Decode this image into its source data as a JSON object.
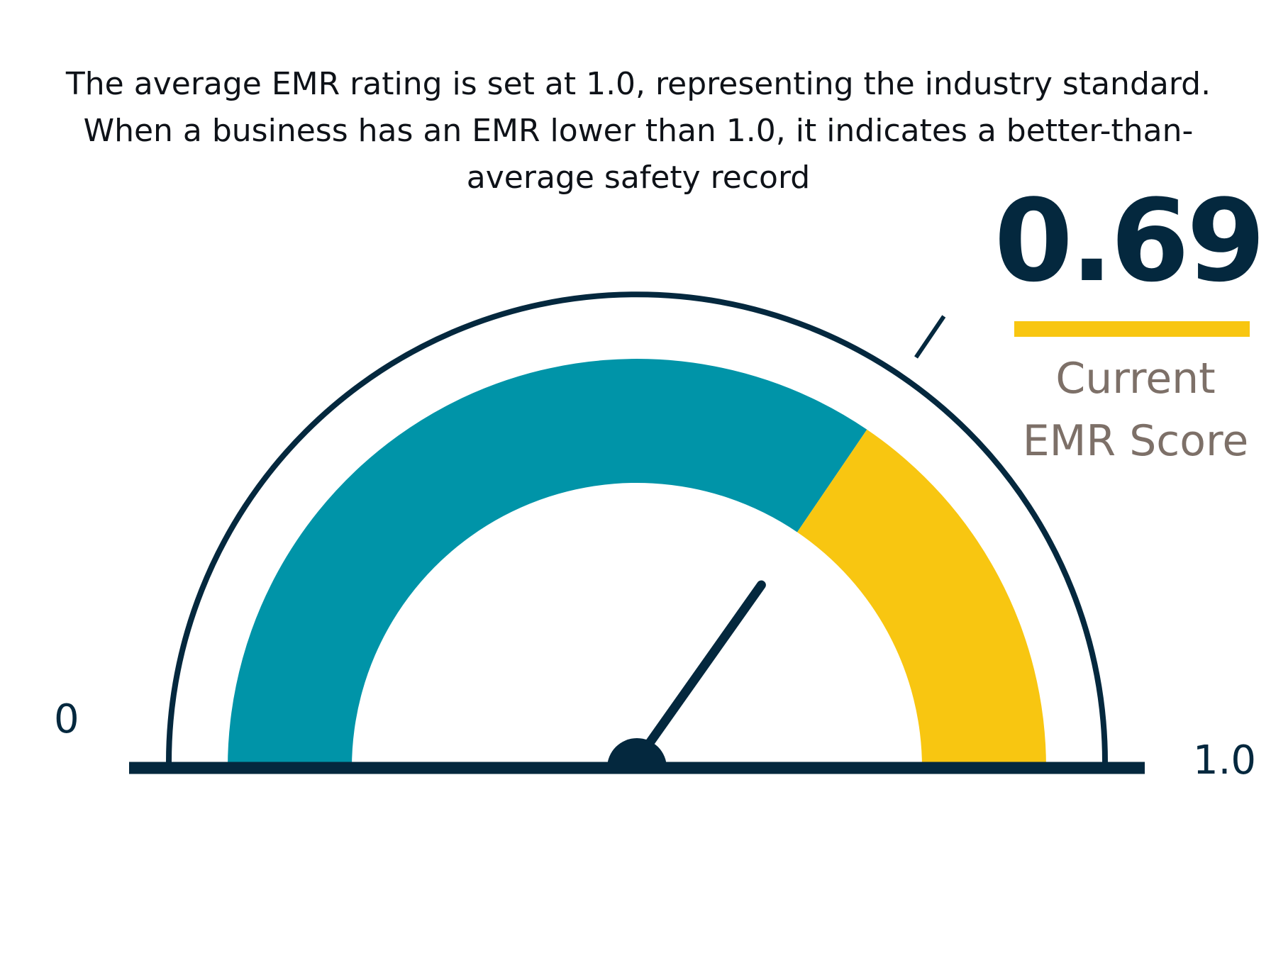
{
  "description": "The average EMR rating is set at 1.0, representing the industry standard. When a business has an EMR lower than 1.0, it indicates a better-than-average safety record",
  "chart_data": {
    "type": "gauge",
    "value": 0.69,
    "value_label": "0.69",
    "min": 0,
    "max": 1.0,
    "min_label": "0",
    "max_label": "1.0",
    "caption_lines": [
      "Current",
      "EMR Score"
    ],
    "segments": [
      {
        "from": 0,
        "to": 0.69,
        "color": "#0094a8"
      },
      {
        "from": 0.69,
        "to": 1.0,
        "color": "#f8c611"
      }
    ]
  },
  "colors": {
    "dark": "#04283e",
    "teal": "#0094a8",
    "yellow": "#f8c611",
    "caption": "#7d7068"
  }
}
